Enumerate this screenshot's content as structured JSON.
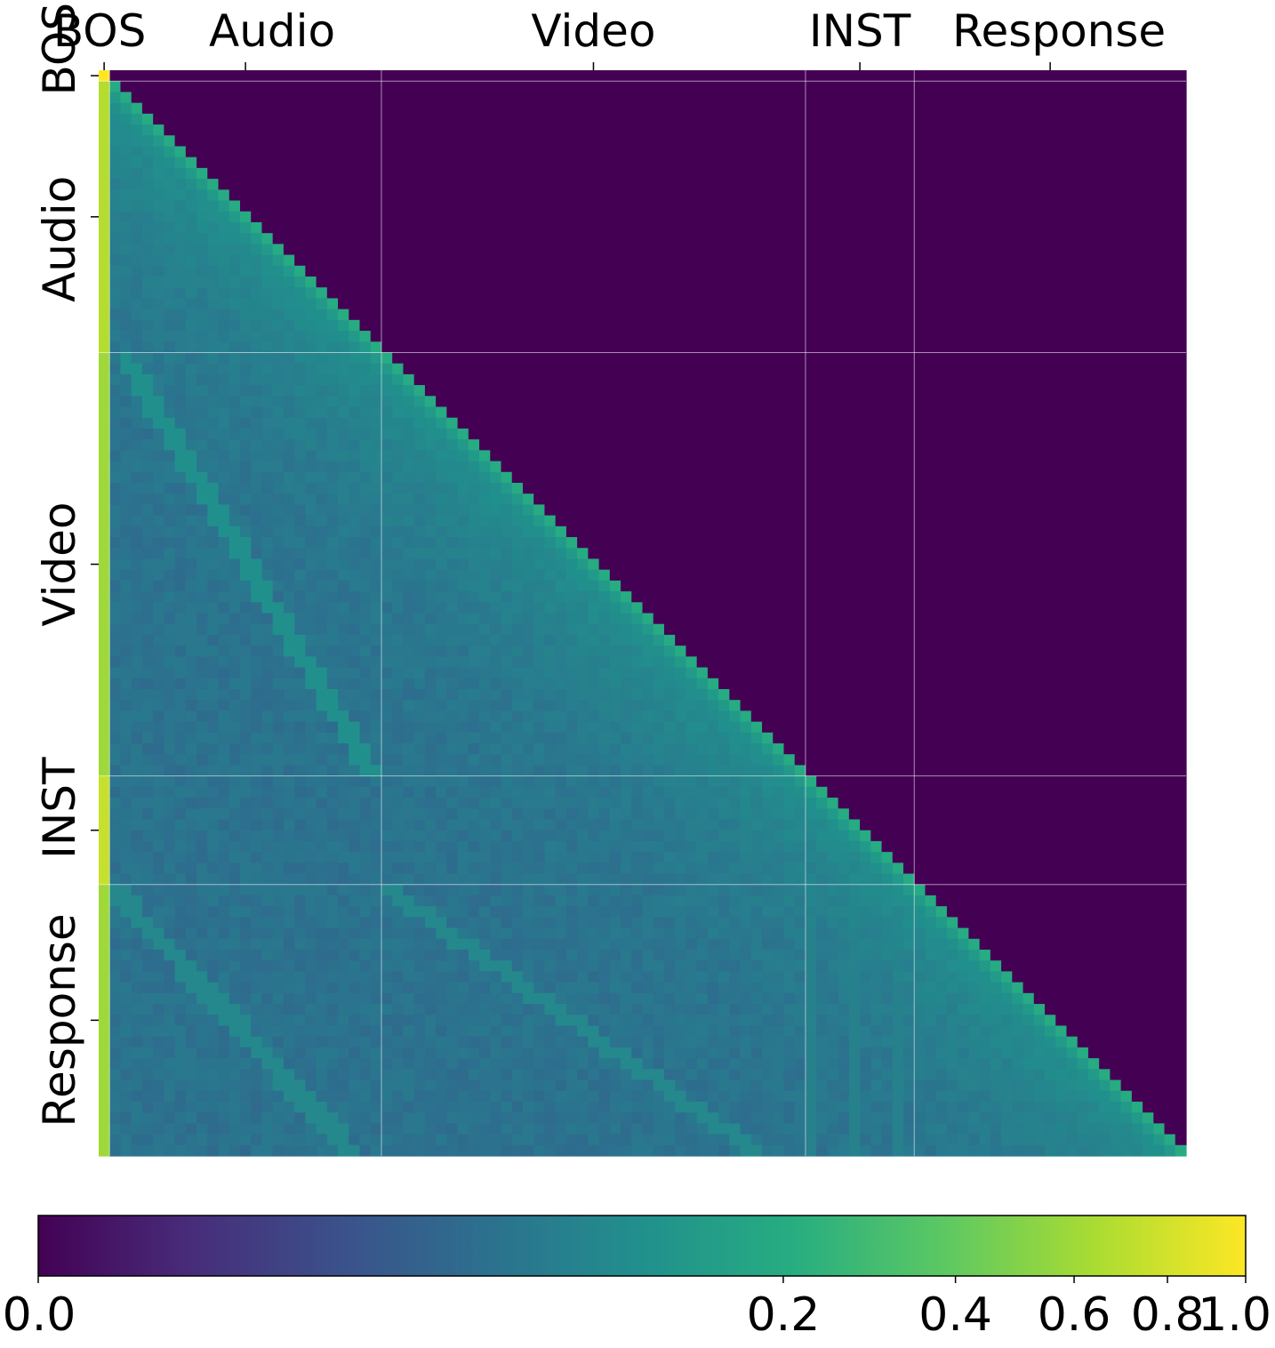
{
  "chart_data": {
    "type": "heatmap",
    "title": "",
    "xlabel": "",
    "ylabel": "",
    "grid": true,
    "colormap": "viridis",
    "legend": "bottom-colorbar",
    "segments": [
      {
        "label": "BOS",
        "tokens": 1
      },
      {
        "label": "Audio",
        "tokens": 25
      },
      {
        "label": "Video",
        "tokens": 39
      },
      {
        "label": "INST",
        "tokens": 10
      },
      {
        "label": "Response",
        "tokens": 25
      }
    ],
    "x_tick_labels": [
      "BOS",
      "Audio",
      "Video",
      "INST",
      "Response"
    ],
    "y_tick_labels": [
      "BOS",
      "Audio",
      "Video",
      "INST",
      "Response"
    ],
    "colorbar": {
      "range": [
        0.0,
        1.0
      ],
      "ticks": [
        0.0,
        0.2,
        0.4,
        0.6,
        0.8,
        1.0
      ],
      "tick_labels": [
        "0.0",
        "0.2",
        "0.4",
        "0.6",
        "0.8",
        "1.0"
      ],
      "scale": "power-compressed",
      "colors": [
        "#440154",
        "#472c7a",
        "#3b518b",
        "#2c718e",
        "#21908d",
        "#27ad81",
        "#5cc863",
        "#aadc32",
        "#fde725"
      ]
    },
    "summary_values": {
      "bos_column_first_row": 1.0,
      "bos_column_typical": 0.6,
      "bos_column_inst_rows": 0.75,
      "diagonal_typical": 0.2,
      "lower_triangle_background": 0.04,
      "upper_triangle": 0.0
    }
  }
}
